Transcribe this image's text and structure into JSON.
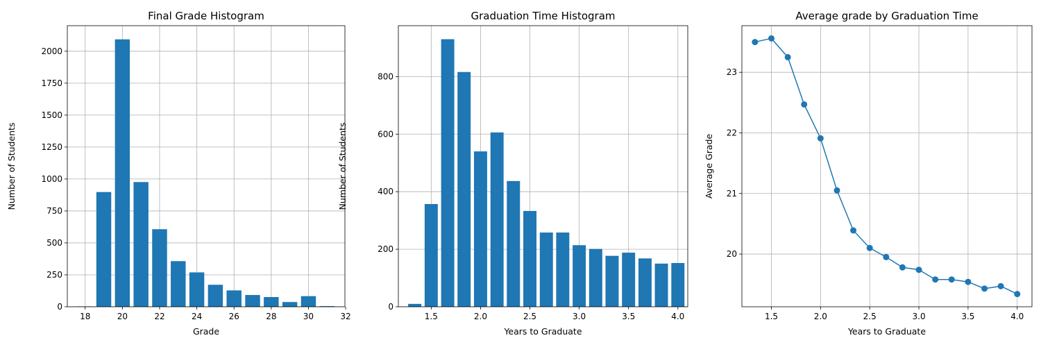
{
  "colors": {
    "bar": "#1f77b4",
    "grid": "#b0b0b0",
    "axis": "#000000"
  },
  "chart_data": [
    {
      "type": "bar",
      "title": "Final Grade Histogram",
      "xlabel": "Grade",
      "ylabel": "Number of Students",
      "x": [
        18,
        19,
        20,
        21,
        22,
        23,
        24,
        25,
        26,
        27,
        28,
        29,
        30,
        31
      ],
      "values": [
        3,
        898,
        2093,
        976,
        607,
        357,
        269,
        172,
        128,
        92,
        76,
        37,
        83,
        5
      ],
      "bar_width": 0.8,
      "xlim": [
        17.04,
        31.96
      ],
      "ylim": [
        0,
        2200
      ],
      "xticks": [
        18,
        20,
        22,
        24,
        26,
        28,
        30,
        32
      ],
      "xtick_labels": [
        "18",
        "20",
        "22",
        "24",
        "26",
        "28",
        "30",
        "32"
      ],
      "yticks": [
        0,
        250,
        500,
        750,
        1000,
        1250,
        1500,
        1750,
        2000
      ],
      "ytick_labels": [
        "0",
        "250",
        "500",
        "750",
        "1000",
        "1250",
        "1500",
        "1750",
        "2000"
      ],
      "grid": true
    },
    {
      "type": "bar",
      "title": "Graduation Time Histogram",
      "xlabel": "Years to Graduate",
      "ylabel": "Number of Students",
      "x": [
        1.333,
        1.5,
        1.667,
        1.833,
        2.0,
        2.167,
        2.333,
        2.5,
        2.667,
        2.833,
        3.0,
        3.167,
        3.333,
        3.5,
        3.667,
        3.833,
        4.0
      ],
      "values": [
        10,
        357,
        930,
        816,
        540,
        606,
        437,
        333,
        258,
        258,
        214,
        201,
        177,
        188,
        168,
        150,
        152
      ],
      "bar_width": 0.1333,
      "xlim": [
        1.167,
        4.1
      ],
      "ylim": [
        0,
        977
      ],
      "xticks": [
        1.5,
        2.0,
        2.5,
        3.0,
        3.5,
        4.0
      ],
      "xtick_labels": [
        "1.5",
        "2.0",
        "2.5",
        "3.0",
        "3.5",
        "4.0"
      ],
      "yticks": [
        0,
        200,
        400,
        600,
        800
      ],
      "ytick_labels": [
        "0",
        "200",
        "400",
        "600",
        "800"
      ],
      "grid": true
    },
    {
      "type": "line",
      "title": "Average grade by Graduation Time",
      "xlabel": "Years to Graduate",
      "ylabel": "Average Grade",
      "x": [
        1.333,
        1.5,
        1.667,
        1.833,
        2.0,
        2.167,
        2.333,
        2.5,
        2.667,
        2.833,
        3.0,
        3.167,
        3.333,
        3.5,
        3.667,
        3.833,
        4.0
      ],
      "values": [
        23.5,
        23.56,
        23.25,
        22.47,
        21.91,
        21.05,
        20.39,
        20.1,
        19.95,
        19.78,
        19.74,
        19.58,
        19.58,
        19.54,
        19.43,
        19.47,
        19.34
      ],
      "markers": true,
      "xlim": [
        1.2,
        4.15
      ],
      "ylim": [
        19.13,
        23.77
      ],
      "xticks": [
        1.5,
        2.0,
        2.5,
        3.0,
        3.5,
        4.0
      ],
      "xtick_labels": [
        "1.5",
        "2.0",
        "2.5",
        "3.0",
        "3.5",
        "4.0"
      ],
      "yticks": [
        20,
        21,
        22,
        23
      ],
      "ytick_labels": [
        "20",
        "21",
        "22",
        "23"
      ],
      "grid": true
    }
  ]
}
